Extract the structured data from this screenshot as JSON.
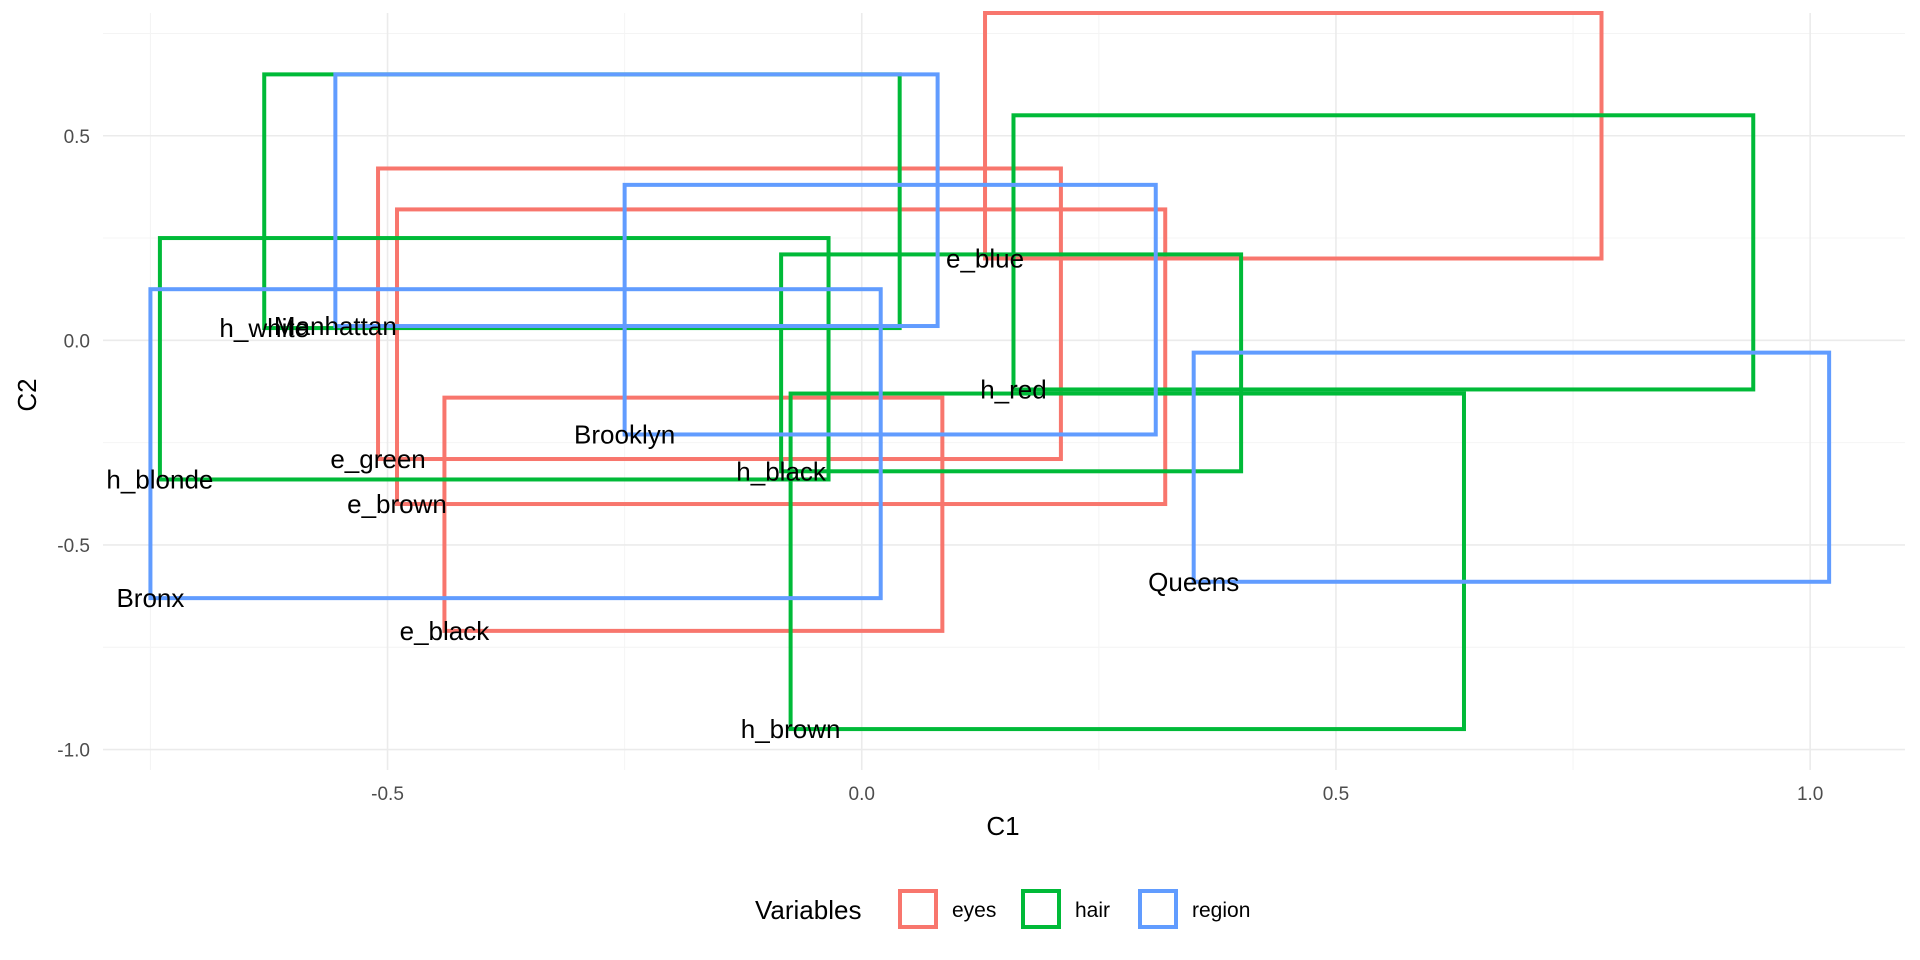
{
  "chart_data": {
    "type": "scatter",
    "xlabel": "C1",
    "ylabel": "C2",
    "xlim": [
      -0.8,
      1.1
    ],
    "ylim": [
      -1.05,
      0.8
    ],
    "x_ticks": [
      -0.5,
      0.0,
      0.5,
      1.0
    ],
    "x_tick_labels": [
      "-0.5",
      "0.0",
      "0.5",
      "1.0"
    ],
    "y_ticks": [
      -1.0,
      -0.5,
      0.0,
      0.5
    ],
    "y_tick_labels": [
      "-1.0",
      "-0.5",
      "0.0",
      "0.5"
    ],
    "grid": true,
    "legend": {
      "title": "Variables",
      "placement": "bottom",
      "entries": [
        {
          "name": "eyes",
          "color": "#F8766D"
        },
        {
          "name": "hair",
          "color": "#00BA38"
        },
        {
          "name": "region",
          "color": "#619CFF"
        }
      ]
    },
    "points": [
      {
        "label": "e_blue",
        "group": "eyes",
        "x": 0.13,
        "y": 0.2,
        "x2": 0.78,
        "y2": 0.8
      },
      {
        "label": "e_green",
        "group": "eyes",
        "x": -0.51,
        "y": -0.29,
        "x2": 0.21,
        "y2": 0.42
      },
      {
        "label": "e_brown",
        "group": "eyes",
        "x": -0.49,
        "y": -0.4,
        "x2": 0.32,
        "y2": 0.32
      },
      {
        "label": "e_black",
        "group": "eyes",
        "x": -0.44,
        "y": -0.71,
        "x2": 0.085,
        "y2": -0.14
      },
      {
        "label": "h_white",
        "group": "hair",
        "x": -0.63,
        "y": 0.03,
        "x2": 0.04,
        "y2": 0.65
      },
      {
        "label": "h_blonde",
        "group": "hair",
        "x": -0.74,
        "y": -0.34,
        "x2": -0.035,
        "y2": 0.25
      },
      {
        "label": "h_red",
        "group": "hair",
        "x": 0.16,
        "y": -0.12,
        "x2": 0.94,
        "y2": 0.55
      },
      {
        "label": "h_black",
        "group": "hair",
        "x": -0.085,
        "y": -0.32,
        "x2": 0.4,
        "y2": 0.21
      },
      {
        "label": "h_brown",
        "group": "hair",
        "x": -0.075,
        "y": -0.95,
        "x2": 0.635,
        "y2": -0.13
      },
      {
        "label": "Manhattan",
        "group": "region",
        "x": -0.555,
        "y": 0.035,
        "x2": 0.08,
        "y2": 0.65
      },
      {
        "label": "Brooklyn",
        "group": "region",
        "x": -0.25,
        "y": -0.23,
        "x2": 0.31,
        "y2": 0.38
      },
      {
        "label": "Bronx",
        "group": "region",
        "x": -0.75,
        "y": -0.63,
        "x2": 0.02,
        "y2": 0.125
      },
      {
        "label": "Queens",
        "group": "region",
        "x": 0.35,
        "y": -0.59,
        "x2": 1.02,
        "y2": -0.03
      }
    ]
  }
}
